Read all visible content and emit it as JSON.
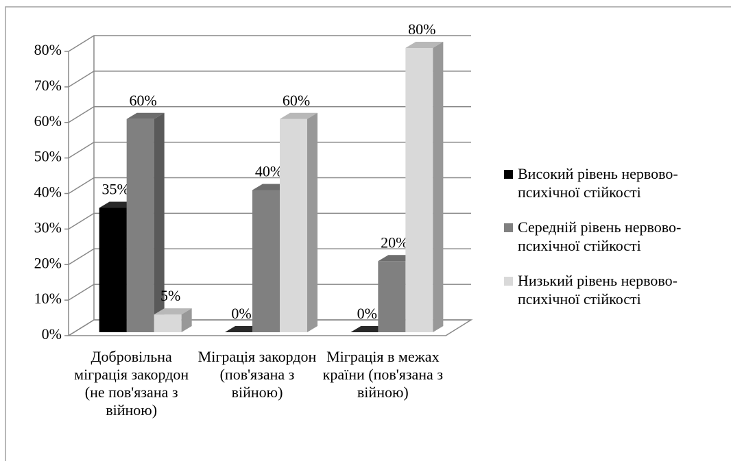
{
  "chart_data": {
    "type": "bar3d",
    "categories": [
      "Добровільна міграція закордон (не пов'язана з війною)",
      "Міграція закордон (пов'язана з війною)",
      "Міграція в межах країни (пов'язана з війною)"
    ],
    "series": [
      {
        "name": "Високий рівень нервово-психічної стійкості",
        "color": "#000000",
        "values": [
          35,
          0,
          0
        ],
        "value_labels": [
          "35%",
          "0%",
          "0%"
        ]
      },
      {
        "name": "Середній рівень нервово-психічної стійкості",
        "color": "#808080",
        "values": [
          60,
          40,
          20
        ],
        "value_labels": [
          "60%",
          "40%",
          "20%"
        ]
      },
      {
        "name": "Низький рівень нервово-психічної стійкості",
        "color": "#d9d9d9",
        "values": [
          5,
          60,
          80
        ],
        "value_labels": [
          "5%",
          "60%",
          "80%"
        ]
      }
    ],
    "ylim": [
      0,
      80
    ],
    "yticks": [
      {
        "value": 0,
        "label": "0%"
      },
      {
        "value": 10,
        "label": "10%"
      },
      {
        "value": 20,
        "label": "20%"
      },
      {
        "value": 30,
        "label": "30%"
      },
      {
        "value": 40,
        "label": "40%"
      },
      {
        "value": 50,
        "label": "50%"
      },
      {
        "value": 60,
        "label": "60%"
      },
      {
        "value": 70,
        "label": "70%"
      },
      {
        "value": 80,
        "label": "80%"
      }
    ],
    "grid": true,
    "legend": "right"
  }
}
